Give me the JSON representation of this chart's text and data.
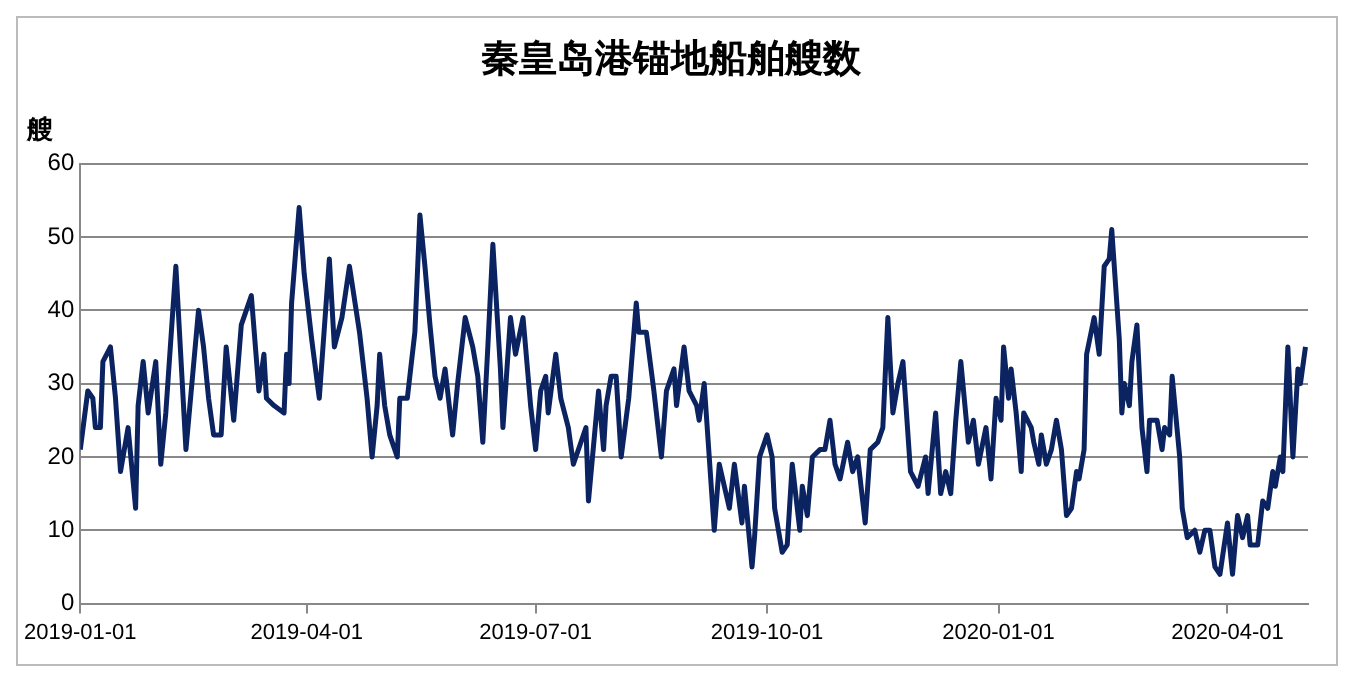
{
  "chart_data": {
    "type": "line",
    "title": "秦皇岛港锚地船舶艘数",
    "ylabel": "艘",
    "x": [
      "2019-01-01",
      "2019-01-04",
      "2019-01-06",
      "2019-01-07",
      "2019-01-09",
      "2019-01-10",
      "2019-01-13",
      "2019-01-15",
      "2019-01-17",
      "2019-01-20",
      "2019-01-23",
      "2019-01-24",
      "2019-01-26",
      "2019-01-28",
      "2019-01-31",
      "2019-02-02",
      "2019-02-04",
      "2019-02-08",
      "2019-02-12",
      "2019-02-17",
      "2019-02-19",
      "2019-02-21",
      "2019-02-23",
      "2019-02-26",
      "2019-02-28",
      "2019-03-03",
      "2019-03-06",
      "2019-03-07",
      "2019-03-10",
      "2019-03-13",
      "2019-03-15",
      "2019-03-16",
      "2019-03-19",
      "2019-03-23",
      "2019-03-24",
      "2019-03-25",
      "2019-03-26",
      "2019-03-29",
      "2019-03-31",
      "2019-04-03",
      "2019-04-06",
      "2019-04-10",
      "2019-04-12",
      "2019-04-15",
      "2019-04-18",
      "2019-04-22",
      "2019-04-25",
      "2019-04-27",
      "2019-04-29",
      "2019-04-30",
      "2019-05-02",
      "2019-05-04",
      "2019-05-07",
      "2019-05-08",
      "2019-05-11",
      "2019-05-14",
      "2019-05-16",
      "2019-05-18",
      "2019-05-20",
      "2019-05-22",
      "2019-05-24",
      "2019-05-26",
      "2019-05-29",
      "2019-05-31",
      "2019-06-03",
      "2019-06-06",
      "2019-06-08",
      "2019-06-10",
      "2019-06-12",
      "2019-06-14",
      "2019-06-17",
      "2019-06-18",
      "2019-06-21",
      "2019-06-23",
      "2019-06-26",
      "2019-06-29",
      "2019-07-01",
      "2019-07-03",
      "2019-07-05",
      "2019-07-06",
      "2019-07-09",
      "2019-07-11",
      "2019-07-14",
      "2019-07-16",
      "2019-07-19",
      "2019-07-21",
      "2019-07-22",
      "2019-07-26",
      "2019-07-28",
      "2019-07-29",
      "2019-07-31",
      "2019-08-02",
      "2019-08-04",
      "2019-08-07",
      "2019-08-10",
      "2019-08-11",
      "2019-08-14",
      "2019-08-17",
      "2019-08-20",
      "2019-08-22",
      "2019-08-25",
      "2019-08-26",
      "2019-08-29",
      "2019-08-31",
      "2019-09-03",
      "2019-09-04",
      "2019-09-06",
      "2019-09-08",
      "2019-09-10",
      "2019-09-12",
      "2019-09-14",
      "2019-09-16",
      "2019-09-18",
      "2019-09-21",
      "2019-09-22",
      "2019-09-25",
      "2019-09-26",
      "2019-09-28",
      "2019-10-01",
      "2019-10-03",
      "2019-10-04",
      "2019-10-07",
      "2019-10-09",
      "2019-10-11",
      "2019-10-14",
      "2019-10-15",
      "2019-10-17",
      "2019-10-19",
      "2019-10-22",
      "2019-10-24",
      "2019-10-26",
      "2019-10-28",
      "2019-10-30",
      "2019-11-02",
      "2019-11-04",
      "2019-11-06",
      "2019-11-09",
      "2019-11-11",
      "2019-11-14",
      "2019-11-16",
      "2019-11-18",
      "2019-11-20",
      "2019-11-22",
      "2019-11-24",
      "2019-11-27",
      "2019-11-30",
      "2019-12-03",
      "2019-12-04",
      "2019-12-07",
      "2019-12-09",
      "2019-12-11",
      "2019-12-13",
      "2019-12-15",
      "2019-12-17",
      "2019-12-20",
      "2019-12-22",
      "2019-12-24",
      "2019-12-27",
      "2019-12-29",
      "2019-12-31",
      "2020-01-02",
      "2020-01-03",
      "2020-01-05",
      "2020-01-06",
      "2020-01-08",
      "2020-01-10",
      "2020-01-11",
      "2020-01-14",
      "2020-01-15",
      "2020-01-17",
      "2020-01-18",
      "2020-01-20",
      "2020-01-22",
      "2020-01-24",
      "2020-01-26",
      "2020-01-28",
      "2020-01-30",
      "2020-02-01",
      "2020-02-02",
      "2020-02-04",
      "2020-02-05",
      "2020-02-08",
      "2020-02-10",
      "2020-02-12",
      "2020-02-14",
      "2020-02-15",
      "2020-02-18",
      "2020-02-19",
      "2020-02-20",
      "2020-02-22",
      "2020-02-23",
      "2020-02-25",
      "2020-02-27",
      "2020-02-29",
      "2020-03-01",
      "2020-03-04",
      "2020-03-06",
      "2020-03-07",
      "2020-03-09",
      "2020-03-10",
      "2020-03-13",
      "2020-03-14",
      "2020-03-16",
      "2020-03-19",
      "2020-03-21",
      "2020-03-23",
      "2020-03-25",
      "2020-03-27",
      "2020-03-29",
      "2020-04-01",
      "2020-04-03",
      "2020-04-05",
      "2020-04-07",
      "2020-04-09",
      "2020-04-10",
      "2020-04-13",
      "2020-04-15",
      "2020-04-17",
      "2020-04-19",
      "2020-04-20",
      "2020-04-22",
      "2020-04-23",
      "2020-04-25",
      "2020-04-27",
      "2020-04-29",
      "2020-04-30",
      "2020-05-02"
    ],
    "series": [
      {
        "color": "#0b2461",
        "values": [
          21,
          29,
          28,
          24,
          24,
          33,
          35,
          28,
          18,
          24,
          13,
          27,
          33,
          26,
          33,
          19,
          26,
          46,
          21,
          40,
          35,
          28,
          23,
          23,
          35,
          25,
          38,
          39,
          42,
          29,
          34,
          28,
          27,
          26,
          34,
          30,
          41,
          54,
          45,
          36,
          28,
          47,
          35,
          39,
          46,
          37,
          28,
          20,
          27,
          34,
          27,
          23,
          20,
          28,
          28,
          37,
          53,
          46,
          38,
          31,
          28,
          32,
          23,
          30,
          39,
          35,
          31,
          22,
          35,
          49,
          32,
          24,
          39,
          34,
          39,
          27,
          21,
          29,
          31,
          26,
          34,
          28,
          24,
          19,
          22,
          24,
          14,
          29,
          21,
          27,
          31,
          31,
          20,
          28,
          41,
          37,
          37,
          29,
          20,
          29,
          32,
          27,
          35,
          29,
          27,
          25,
          30,
          20,
          10,
          19,
          16,
          13,
          19,
          11,
          16,
          5,
          9,
          20,
          23,
          20,
          13,
          7,
          8,
          19,
          10,
          16,
          12,
          20,
          21,
          21,
          25,
          19,
          17,
          22,
          18,
          20,
          11,
          21,
          22,
          24,
          39,
          26,
          30,
          33,
          18,
          16,
          20,
          15,
          26,
          15,
          18,
          15,
          25,
          33,
          22,
          25,
          19,
          24,
          17,
          28,
          25,
          35,
          28,
          32,
          26,
          18,
          26,
          24,
          22,
          19,
          23,
          19,
          21,
          25,
          21,
          12,
          13,
          18,
          17,
          21,
          34,
          39,
          34,
          46,
          47,
          51,
          36,
          26,
          30,
          27,
          33,
          38,
          24,
          18,
          25,
          25,
          21,
          24,
          23,
          31,
          20,
          13,
          9,
          10,
          7,
          10,
          10,
          5,
          4,
          11,
          4,
          12,
          9,
          12,
          8,
          8,
          14,
          13,
          18,
          16,
          20,
          18,
          35,
          20,
          32,
          30,
          35
        ]
      }
    ],
    "xlim": [
      "2019-01-01",
      "2020-05-03"
    ],
    "xticks": [
      "2019-01-01",
      "2019-04-01",
      "2019-07-01",
      "2019-10-01",
      "2020-01-01",
      "2020-04-01"
    ],
    "ylim": [
      0,
      60
    ],
    "yticks": [
      0,
      10,
      20,
      30,
      40,
      50,
      60
    ],
    "grid": "y",
    "legend": false,
    "marker": "none",
    "line_style": "solid"
  }
}
